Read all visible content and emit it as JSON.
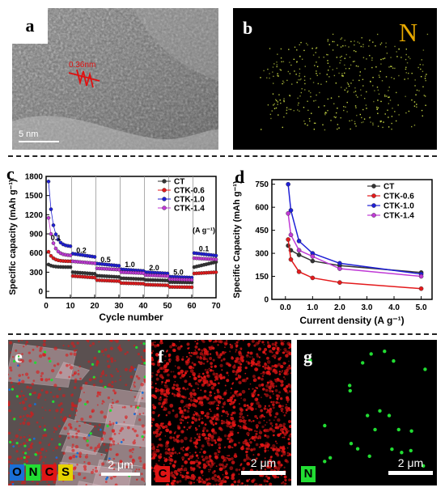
{
  "panels": {
    "a": {
      "label": "a",
      "spacing": "0.36nm",
      "scalebar": "5 nm"
    },
    "b": {
      "label": "b",
      "element": "N"
    },
    "c": {
      "label": "c"
    },
    "d": {
      "label": "d"
    },
    "e": {
      "label": "e",
      "legend": [
        "O",
        "N",
        "C",
        "S"
      ],
      "scalebar": "2 μm"
    },
    "f": {
      "label": "f",
      "element": "C",
      "scalebar": "2 μm"
    },
    "g": {
      "label": "g",
      "element": "N",
      "scalebar": "2 μm"
    }
  },
  "colors": {
    "CT": "#333333",
    "CTK-0.6": "#e41a1c",
    "CTK-1.0": "#1f1fd6",
    "CTK-1.4": "#c03ad6",
    "N_map": "#22dd33",
    "C_map": "#e01515",
    "O_tag": "#1a6fd6",
    "S_tag": "#e6d200"
  },
  "chart_data": [
    {
      "type": "scatter",
      "panel": "c",
      "xlabel": "Cycle number",
      "ylabel": "Specific capacity (mAh g⁻¹)",
      "xlim": [
        0,
        70
      ],
      "ylim": [
        -100,
        1800
      ],
      "xticks": [
        0,
        10,
        20,
        30,
        40,
        50,
        60,
        70
      ],
      "yticks": [
        0,
        300,
        600,
        900,
        1200,
        1500,
        1800
      ],
      "grid": false,
      "legend_position": "top-right",
      "rate_annotations": [
        {
          "text": "0.1",
          "x": 4,
          "y": 800
        },
        {
          "text": "0.2",
          "x": 14.5,
          "y": 600
        },
        {
          "text": "0.5",
          "x": 24.5,
          "y": 460
        },
        {
          "text": "1.0",
          "x": 34.5,
          "y": 380
        },
        {
          "text": "2.0",
          "x": 44.5,
          "y": 330
        },
        {
          "text": "5.0",
          "x": 54.5,
          "y": 260
        },
        {
          "text": "0.1",
          "x": 65,
          "y": 630
        },
        {
          "text": "(A g⁻¹)",
          "x": 65,
          "y": 920
        }
      ],
      "segments": [
        [
          1,
          10
        ],
        [
          11,
          20
        ],
        [
          21,
          30
        ],
        [
          31,
          40
        ],
        [
          41,
          50
        ],
        [
          51,
          60
        ],
        [
          61,
          70
        ]
      ],
      "series": [
        {
          "name": "CT",
          "levels": [
            [
              420,
              380
            ],
            [
              300,
              275
            ],
            [
              245,
              225
            ],
            [
              205,
              192
            ],
            [
              180,
              170
            ],
            [
              145,
              140
            ],
            [
              380,
              460
            ]
          ]
        },
        {
          "name": "CTK-0.6",
          "levels": [
            [
              620,
              470
            ],
            [
              240,
              215
            ],
            [
              175,
              160
            ],
            [
              130,
              120
            ],
            [
              105,
              95
            ],
            [
              70,
              65
            ],
            [
              280,
              300
            ]
          ]
        },
        {
          "name": "CTK-1.0",
          "levels": [
            [
              1720,
              700
            ],
            [
              590,
              540
            ],
            [
              435,
              400
            ],
            [
              345,
              320
            ],
            [
              300,
              280
            ],
            [
              230,
              215
            ],
            [
              600,
              560
            ]
          ]
        },
        {
          "name": "CTK-1.4",
          "levels": [
            [
              1150,
              560
            ],
            [
              470,
              440
            ],
            [
              360,
              340
            ],
            [
              300,
              285
            ],
            [
              255,
              240
            ],
            [
              190,
              180
            ],
            [
              520,
              500
            ]
          ]
        }
      ]
    },
    {
      "type": "line",
      "panel": "d",
      "xlabel": "Current density (A g⁻¹)",
      "ylabel": "Specific Capacity (mAh g⁻¹)",
      "xlim": [
        -0.5,
        5.4
      ],
      "ylim": [
        0,
        780
      ],
      "xticks": [
        "0.0",
        "1.0",
        "2.0",
        "3.0",
        "4.0",
        "5.0"
      ],
      "yticks": [
        0,
        150,
        300,
        450,
        600,
        750
      ],
      "grid": false,
      "legend_position": "top-right",
      "x": [
        0.1,
        0.2,
        0.5,
        1.0,
        2.0,
        5.0
      ],
      "series": [
        {
          "name": "CT",
          "values": [
            350,
            320,
            290,
            250,
            220,
            175
          ]
        },
        {
          "name": "CTK-0.6",
          "values": [
            390,
            260,
            180,
            140,
            110,
            70
          ]
        },
        {
          "name": "CTK-1.0",
          "values": [
            750,
            580,
            380,
            300,
            235,
            165
          ]
        },
        {
          "name": "CTK-1.4",
          "values": [
            560,
            420,
            320,
            280,
            200,
            150
          ]
        }
      ]
    }
  ]
}
